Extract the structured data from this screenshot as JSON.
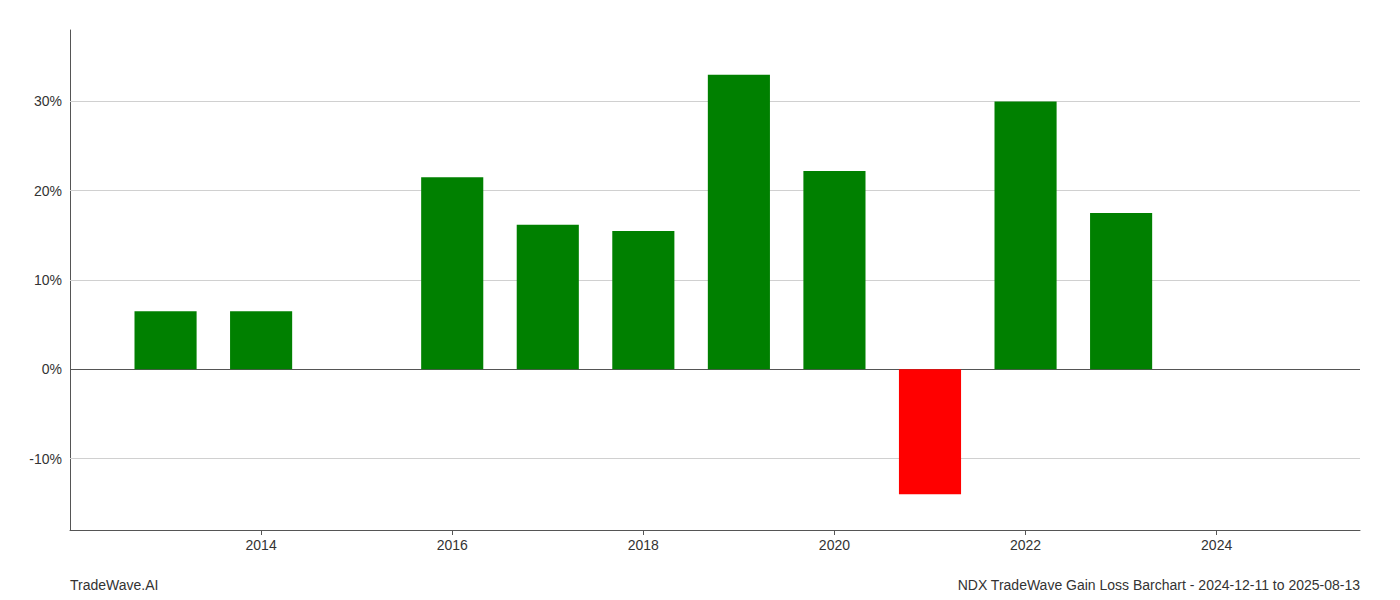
{
  "chart_data": {
    "type": "bar",
    "x": [
      2013,
      2014,
      2016,
      2017,
      2018,
      2019,
      2020,
      2021,
      2022,
      2023
    ],
    "values": [
      6.5,
      6.5,
      21.5,
      16.2,
      15.5,
      33.0,
      22.2,
      -14.0,
      30.0,
      17.5
    ],
    "colors": [
      "#008000",
      "#008000",
      "#008000",
      "#008000",
      "#008000",
      "#008000",
      "#008000",
      "#ff0000",
      "#008000",
      "#008000"
    ],
    "xlim": [
      2012.0,
      2025.5
    ],
    "xticks": [
      2014,
      2016,
      2018,
      2020,
      2022,
      2024
    ],
    "ylim": [
      -18,
      38
    ],
    "yticks": [
      {
        "value": -10,
        "label": "-10%"
      },
      {
        "value": 0,
        "label": "0%"
      },
      {
        "value": 10,
        "label": "10%"
      },
      {
        "value": 20,
        "label": "20%"
      },
      {
        "value": 30,
        "label": "30%"
      }
    ],
    "grid": true,
    "annotations": [
      "TradeWave.AI",
      "NDX TradeWave Gain Loss Barchart - 2024-12-11 to 2025-08-13"
    ]
  }
}
